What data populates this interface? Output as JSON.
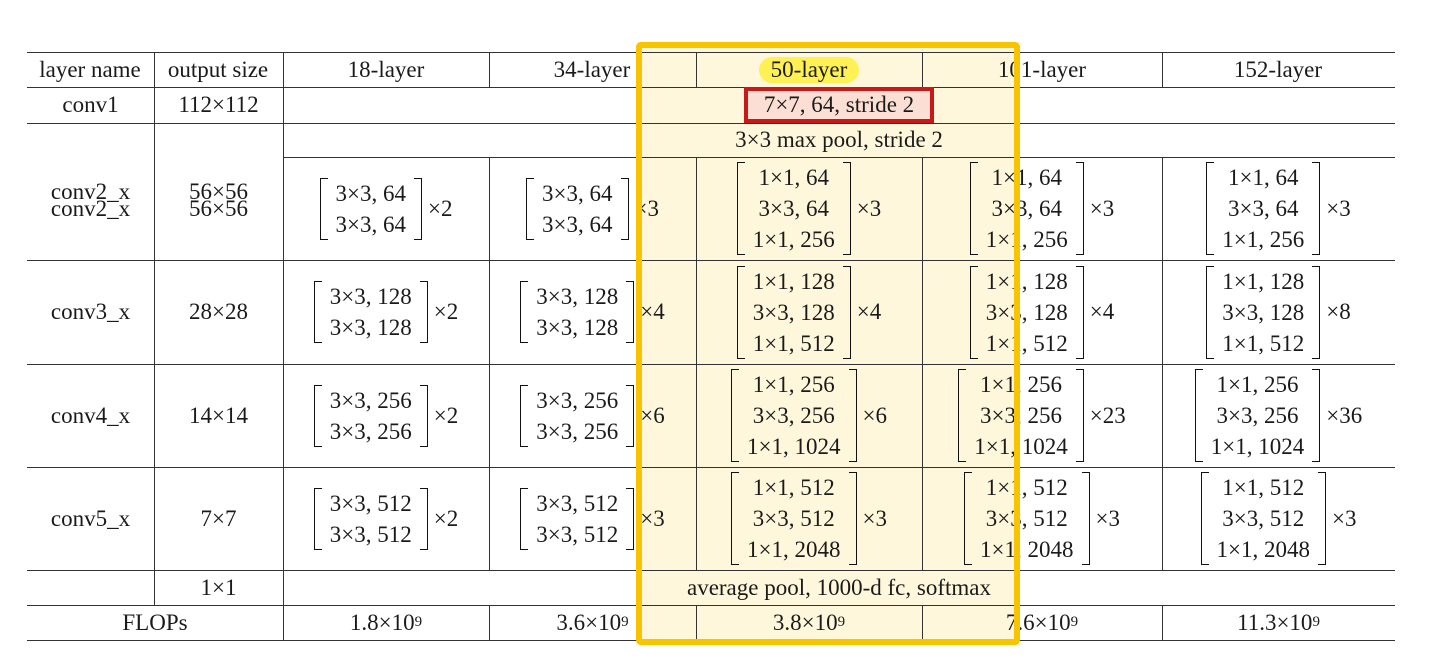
{
  "table": {
    "headers": [
      "layer name",
      "output size",
      "18-layer",
      "34-layer",
      "50-layer",
      "101-layer",
      "152-layer"
    ],
    "highlighted_column": "50-layer",
    "rows": [
      {
        "name": "conv1",
        "output": "112×112",
        "span_text": "7×7, 64, stride 2"
      },
      {
        "name": "",
        "output": "",
        "span_text": "3×3 max pool, stride 2"
      },
      {
        "name": "conv2_x",
        "output": "56×56",
        "blocks": [
          {
            "lines": [
              "3×3, 64",
              "3×3, 64"
            ],
            "rep": "×2"
          },
          {
            "lines": [
              "3×3, 64",
              "3×3, 64"
            ],
            "rep": "×3"
          },
          {
            "lines": [
              "1×1, 64",
              "3×3, 64",
              "1×1, 256"
            ],
            "rep": "×3"
          },
          {
            "lines": [
              "1×1, 64",
              "3×3, 64",
              "1×1, 256"
            ],
            "rep": "×3"
          },
          {
            "lines": [
              "1×1, 64",
              "3×3, 64",
              "1×1, 256"
            ],
            "rep": "×3"
          }
        ]
      },
      {
        "name": "conv3_x",
        "output": "28×28",
        "blocks": [
          {
            "lines": [
              "3×3, 128",
              "3×3, 128"
            ],
            "rep": "×2"
          },
          {
            "lines": [
              "3×3, 128",
              "3×3, 128"
            ],
            "rep": "×4"
          },
          {
            "lines": [
              "1×1, 128",
              "3×3, 128",
              "1×1, 512"
            ],
            "rep": "×4"
          },
          {
            "lines": [
              "1×1, 128",
              "3×3, 128",
              "1×1, 512"
            ],
            "rep": "×4"
          },
          {
            "lines": [
              "1×1, 128",
              "3×3, 128",
              "1×1, 512"
            ],
            "rep": "×8"
          }
        ]
      },
      {
        "name": "conv4_x",
        "output": "14×14",
        "blocks": [
          {
            "lines": [
              "3×3, 256",
              "3×3, 256"
            ],
            "rep": "×2"
          },
          {
            "lines": [
              "3×3, 256",
              "3×3, 256"
            ],
            "rep": "×6"
          },
          {
            "lines": [
              "1×1, 256",
              "3×3, 256",
              "1×1, 1024"
            ],
            "rep": "×6"
          },
          {
            "lines": [
              "1×1, 256",
              "3×3, 256",
              "1×1, 1024"
            ],
            "rep": "×23"
          },
          {
            "lines": [
              "1×1, 256",
              "3×3, 256",
              "1×1, 1024"
            ],
            "rep": "×36"
          }
        ]
      },
      {
        "name": "conv5_x",
        "output": "7×7",
        "blocks": [
          {
            "lines": [
              "3×3, 512",
              "3×3, 512"
            ],
            "rep": "×2"
          },
          {
            "lines": [
              "3×3, 512",
              "3×3, 512"
            ],
            "rep": "×3"
          },
          {
            "lines": [
              "1×1, 512",
              "3×3, 512",
              "1×1, 2048"
            ],
            "rep": "×3"
          },
          {
            "lines": [
              "1×1, 512",
              "3×3, 512",
              "1×1, 2048"
            ],
            "rep": "×3"
          },
          {
            "lines": [
              "1×1, 512",
              "3×3, 512",
              "1×1, 2048"
            ],
            "rep": "×3"
          }
        ]
      },
      {
        "name": "",
        "output": "1×1",
        "span_text": "average pool, 1000-d fc, softmax"
      }
    ],
    "flops": {
      "label": "FLOPs",
      "values": [
        {
          "mantissa": "1.8×10",
          "exp": "9"
        },
        {
          "mantissa": "3.6×10",
          "exp": "9"
        },
        {
          "mantissa": "3.8×10",
          "exp": "9"
        },
        {
          "mantissa": "7.6×10",
          "exp": "9"
        },
        {
          "mantissa": "11.3×10",
          "exp": "9"
        }
      ]
    }
  },
  "colors": {
    "highlight_frame": "#f8c400",
    "header_marker": "#fff054",
    "red_box": "#c81818",
    "column_tint": "#fff7dc"
  }
}
